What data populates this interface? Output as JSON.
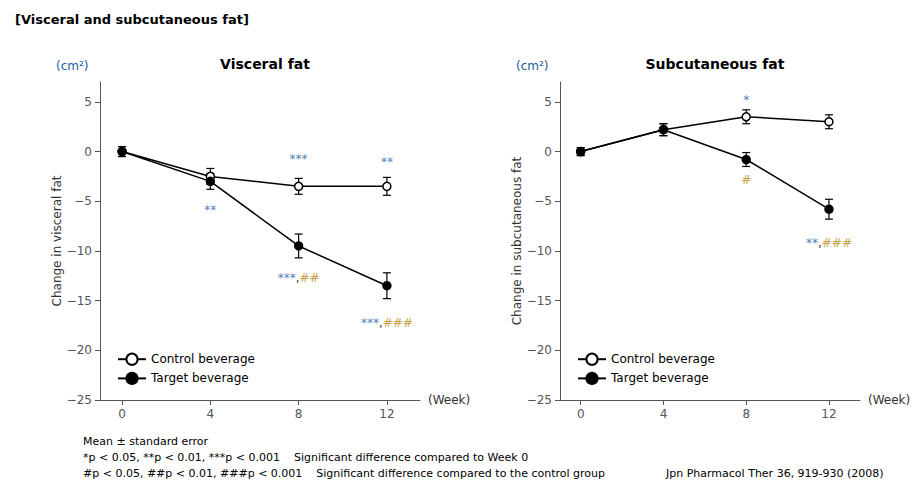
{
  "title": "[Visceral and subcutaneous fat]",
  "footnotes": [
    "Mean ± standard error",
    "*p < 0.05, **p < 0.01, ***p < 0.001    Significant difference compared to Week 0",
    "#p < 0.05, ##p < 0.01, ###p < 0.001    Significant difference compared to the control group"
  ],
  "citation": "Jpn Pharmacol Ther 36, 919-930 (2008)",
  "chart_data": [
    {
      "type": "line",
      "title": "Visceral fat",
      "xlabel": "(Week)",
      "ylabel": "Change in visceral fat",
      "ylabel_unit": {
        "text": "(cm²)",
        "color": "#1a5ba6"
      },
      "x": [
        0,
        4,
        8,
        12
      ],
      "xlim": [
        -1.0,
        13.5
      ],
      "xticks": [
        0,
        4,
        8,
        12
      ],
      "ylim": [
        -25,
        7
      ],
      "yticks": [
        5,
        0,
        {
          "value": -5,
          "label": "−5"
        },
        {
          "value": -10,
          "label": "−10"
        },
        {
          "value": -15,
          "label": "−15"
        },
        {
          "value": -20,
          "label": "−20"
        },
        {
          "value": -25,
          "label": "−25"
        }
      ],
      "grid": false,
      "legend": "lower left",
      "series": [
        {
          "name": "Control beverage",
          "color": "#000000",
          "marker": "circle-open",
          "values": [
            0,
            -2.5,
            -3.5,
            -3.5
          ],
          "errors": [
            0.5,
            0.8,
            0.8,
            0.9
          ]
        },
        {
          "name": "Target beverage",
          "color": "#000000",
          "marker": "circle",
          "values": [
            0,
            -3.0,
            -9.5,
            -13.5
          ],
          "errors": [
            0.5,
            0.8,
            1.2,
            1.3
          ]
        }
      ],
      "annotations": [
        {
          "x": 4,
          "y": -5.2,
          "position": "below",
          "parts": [
            {
              "text": "**",
              "color": "#1a5ba6"
            }
          ]
        },
        {
          "x": 8,
          "y": -1.5,
          "position": "above",
          "parts": [
            {
              "text": "***",
              "color": "#1a5ba6"
            }
          ]
        },
        {
          "x": 12,
          "y": -1.8,
          "position": "above",
          "parts": [
            {
              "text": "**",
              "color": "#1a5ba6"
            }
          ]
        },
        {
          "x": 8,
          "y": -12.0,
          "position": "below",
          "parts": [
            {
              "text": "***",
              "color": "#1a5ba6"
            },
            {
              "text": ",",
              "color": "#000000"
            },
            {
              "text": "##",
              "color": "#b8860b"
            }
          ]
        },
        {
          "x": 12,
          "y": -16.5,
          "position": "below",
          "parts": [
            {
              "text": "***",
              "color": "#1a5ba6"
            },
            {
              "text": ",",
              "color": "#000000"
            },
            {
              "text": "###",
              "color": "#b8860b"
            }
          ]
        }
      ]
    },
    {
      "type": "line",
      "title": "Subcutaneous fat",
      "xlabel": "(Week)",
      "ylabel": "Change in subcutaneous fat",
      "ylabel_unit": {
        "text": "(cm²)",
        "color": "#1a5ba6"
      },
      "x": [
        0,
        4,
        8,
        12
      ],
      "xlim": [
        -1.0,
        13.5
      ],
      "xticks": [
        0,
        4,
        8,
        12
      ],
      "ylim": [
        -25,
        7
      ],
      "yticks": [
        5,
        0,
        {
          "value": -5,
          "label": "−5"
        },
        {
          "value": -10,
          "label": "−10"
        },
        {
          "value": -15,
          "label": "−15"
        },
        {
          "value": -20,
          "label": "−20"
        },
        {
          "value": -25,
          "label": "−25"
        }
      ],
      "grid": false,
      "legend": "lower left",
      "series": [
        {
          "name": "Control beverage",
          "color": "#000000",
          "marker": "circle-open",
          "values": [
            0,
            2.2,
            3.5,
            3.0
          ],
          "errors": [
            0.4,
            0.6,
            0.7,
            0.7
          ]
        },
        {
          "name": "Target beverage",
          "color": "#000000",
          "marker": "circle",
          "values": [
            0,
            2.2,
            -0.8,
            -5.8
          ],
          "errors": [
            0.4,
            0.6,
            0.7,
            1.0
          ]
        }
      ],
      "annotations": [
        {
          "x": 8,
          "y": 4.5,
          "position": "above",
          "parts": [
            {
              "text": "*",
              "color": "#1a5ba6"
            }
          ]
        },
        {
          "x": 8,
          "y": -2.2,
          "position": "below",
          "parts": [
            {
              "text": "#",
              "color": "#b8860b"
            }
          ]
        },
        {
          "x": 12,
          "y": -8.5,
          "position": "below",
          "parts": [
            {
              "text": "**",
              "color": "#1a5ba6"
            },
            {
              "text": ",",
              "color": "#000000"
            },
            {
              "text": "###",
              "color": "#b8860b"
            }
          ]
        }
      ]
    }
  ]
}
